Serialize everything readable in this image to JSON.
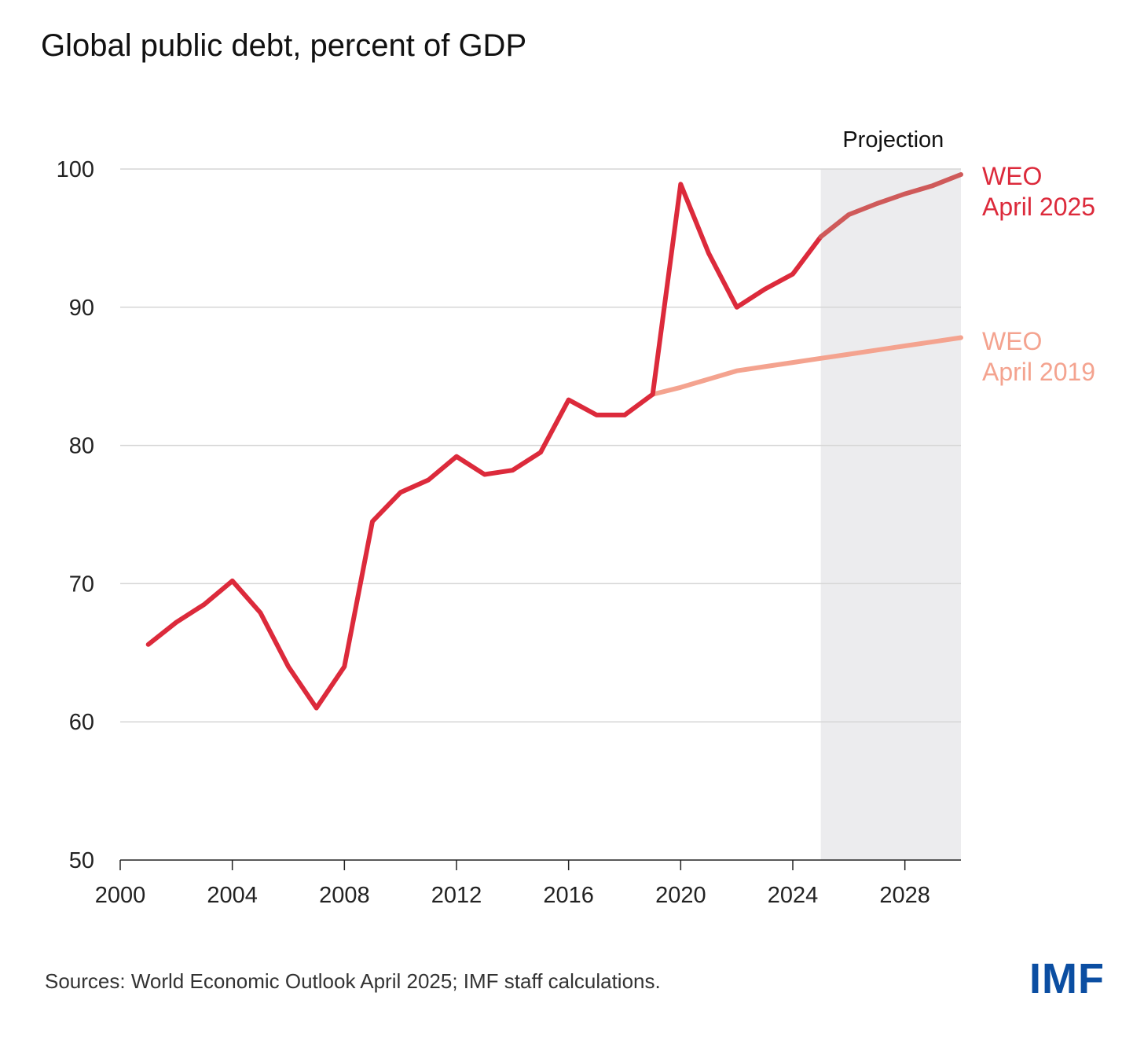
{
  "title": "Global public debt, percent of GDP",
  "sources": "Sources: World Economic Outlook April 2025; IMF staff calculations.",
  "logo": "IMF",
  "colors": {
    "weo2025": "#dc2a3b",
    "weo2025_projection": "#cf5a5a",
    "weo2019": "#f4a38f",
    "projection_shade": "#ececee",
    "grid": "#d6d6d6",
    "logo": "#0b4ea2"
  },
  "chart_data": {
    "type": "line",
    "title": "Global public debt, percent of GDP",
    "xlabel": "",
    "ylabel": "",
    "xlim": [
      2000,
      2030
    ],
    "ylim": [
      50,
      100
    ],
    "x_ticks": [
      2000,
      2004,
      2008,
      2012,
      2016,
      2020,
      2024,
      2028
    ],
    "y_ticks": [
      50,
      60,
      70,
      80,
      90,
      100
    ],
    "grid": "horizontal",
    "projection": {
      "label": "Projection",
      "start": 2025,
      "end": 2030
    },
    "series": [
      {
        "name": "WEO April 2025",
        "label_lines": [
          "WEO",
          "April 2025"
        ],
        "points": [
          [
            2001,
            65.6
          ],
          [
            2002,
            67.2
          ],
          [
            2003,
            68.5
          ],
          [
            2004,
            70.2
          ],
          [
            2005,
            67.9
          ],
          [
            2006,
            64.0
          ],
          [
            2007,
            61.0
          ],
          [
            2008,
            64.0
          ],
          [
            2009,
            74.5
          ],
          [
            2010,
            76.6
          ],
          [
            2011,
            77.5
          ],
          [
            2012,
            79.2
          ],
          [
            2013,
            77.9
          ],
          [
            2014,
            78.2
          ],
          [
            2015,
            79.5
          ],
          [
            2016,
            83.3
          ],
          [
            2017,
            82.2
          ],
          [
            2018,
            82.2
          ],
          [
            2019,
            83.7
          ],
          [
            2020,
            98.9
          ],
          [
            2021,
            93.9
          ],
          [
            2022,
            90.0
          ],
          [
            2023,
            91.3
          ],
          [
            2024,
            92.4
          ],
          [
            2025,
            95.1
          ],
          [
            2026,
            96.7
          ],
          [
            2027,
            97.5
          ],
          [
            2028,
            98.2
          ],
          [
            2029,
            98.8
          ],
          [
            2030,
            99.6
          ]
        ]
      },
      {
        "name": "WEO April 2019",
        "label_lines": [
          "WEO",
          "April 2019"
        ],
        "points": [
          [
            2019,
            83.7
          ],
          [
            2020,
            84.2
          ],
          [
            2021,
            84.8
          ],
          [
            2022,
            85.4
          ],
          [
            2023,
            85.7
          ],
          [
            2024,
            86.0
          ],
          [
            2025,
            86.3
          ],
          [
            2026,
            86.6
          ],
          [
            2027,
            86.9
          ],
          [
            2028,
            87.2
          ],
          [
            2029,
            87.5
          ],
          [
            2030,
            87.8
          ]
        ]
      }
    ]
  }
}
